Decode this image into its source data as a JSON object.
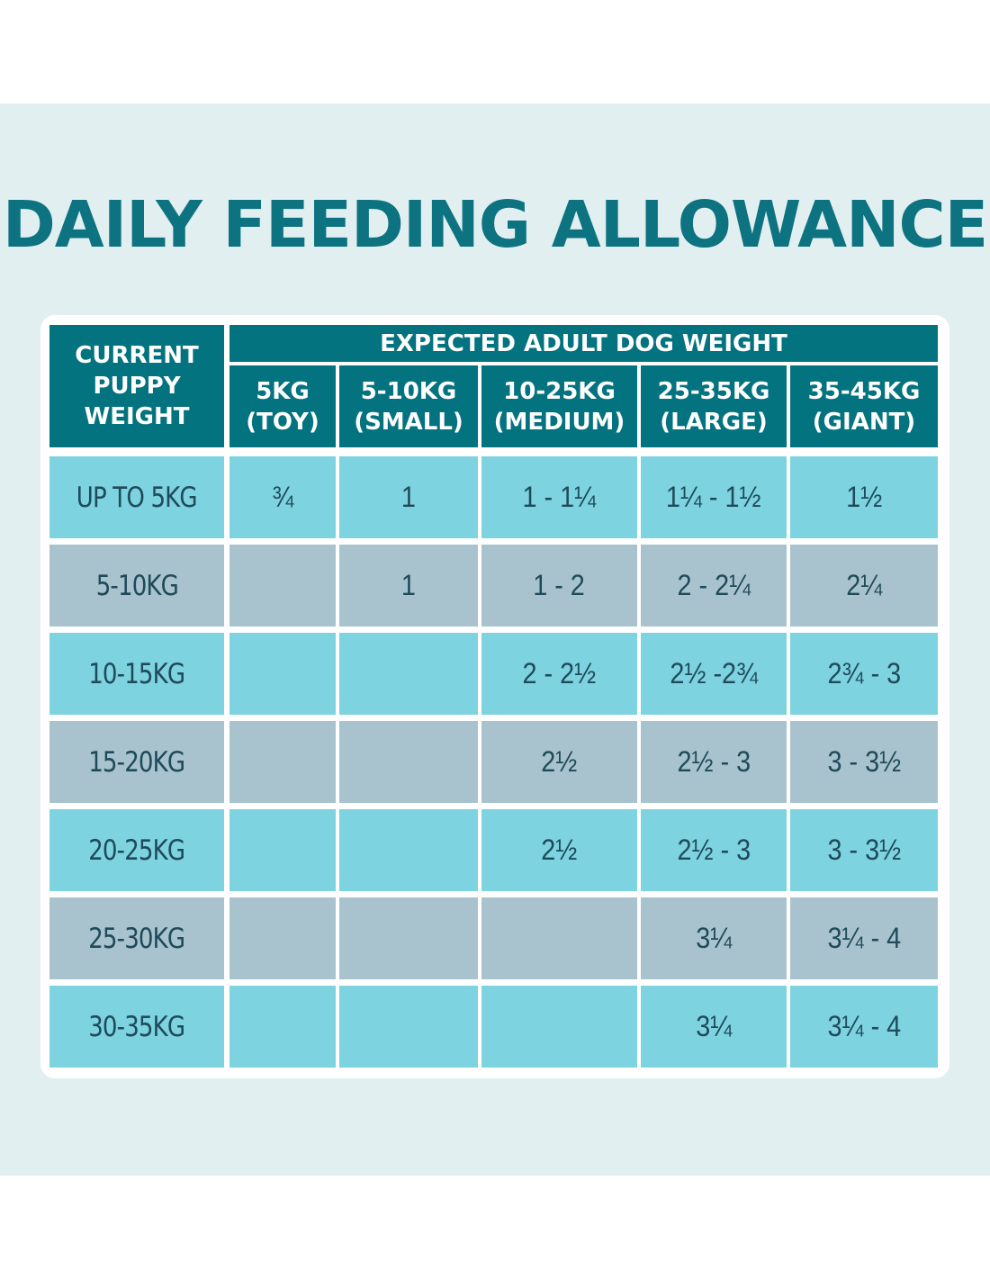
{
  "title": "DAILY FEEDING ALLOWANCE",
  "table": {
    "corner_header": [
      "CURRENT",
      "PUPPY",
      "WEIGHT"
    ],
    "group_header": "EXPECTED ADULT DOG WEIGHT",
    "columns": [
      {
        "line1": "5KG",
        "line2": "(TOY)"
      },
      {
        "line1": "5-10KG",
        "line2": "(SMALL)"
      },
      {
        "line1": "10-25KG",
        "line2": "(MEDIUM)"
      },
      {
        "line1": "25-35KG",
        "line2": "(LARGE)"
      },
      {
        "line1": "35-45KG",
        "line2": "(GIANT)"
      }
    ],
    "rows": [
      {
        "label": "UP TO 5KG",
        "cells": [
          "¾",
          "1",
          "1 - 1¼",
          "1¼ - 1½",
          "1½"
        ]
      },
      {
        "label": "5-10KG",
        "cells": [
          "",
          "1",
          "1 - 2",
          "2 - 2¼",
          "2¼"
        ]
      },
      {
        "label": "10-15KG",
        "cells": [
          "",
          "",
          "2 - 2½",
          "2½ -2¾",
          "2¾ - 3"
        ]
      },
      {
        "label": "15-20KG",
        "cells": [
          "",
          "",
          "2½",
          "2½ - 3",
          "3 - 3½"
        ]
      },
      {
        "label": "20-25KG",
        "cells": [
          "",
          "",
          "2½",
          "2½ - 3",
          "3 - 3½"
        ]
      },
      {
        "label": "25-30KG",
        "cells": [
          "",
          "",
          "",
          "3¼",
          "3¼ - 4"
        ]
      },
      {
        "label": "30-35KG",
        "cells": [
          "",
          "",
          "",
          "3¼",
          "3¼ - 4"
        ]
      }
    ]
  },
  "colors": {
    "panel_background": "#e1eff1",
    "title": "#0d7380",
    "header": "#047380",
    "row_light": "#7dd3df",
    "row_grey": "#a8c3ce",
    "text": "#1f4a5a"
  }
}
